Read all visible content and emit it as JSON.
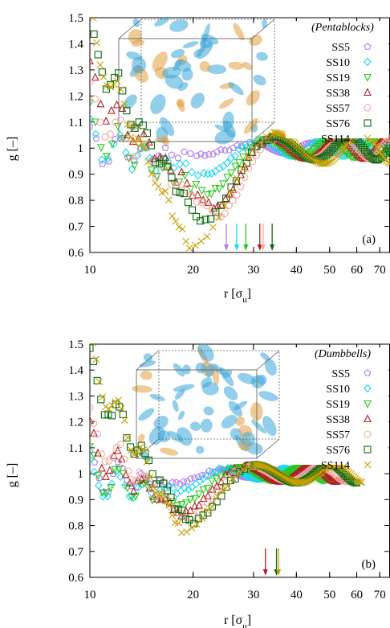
{
  "figure": {
    "xlabel": "r [σ",
    "xlabel_sub": "u",
    "xlabel_close": "]",
    "ylabel": "g [–]"
  },
  "colors": {
    "SS5": "#b07ef0",
    "SS10": "#19d6f2",
    "SS19": "#27c81e",
    "SS38": "#b0201e",
    "SS57": "#f4a8a0",
    "SS76": "#0f6a10",
    "SS114": "#c8a000",
    "box_blue": "#3aa6d8",
    "box_orange": "#e0a040"
  },
  "chart_data": [
    {
      "type": "scatter",
      "panel_label": "(a)",
      "legend_title": "(Pentablocks)",
      "xscale": "log",
      "xlim": [
        10,
        75
      ],
      "ylim": [
        0.6,
        1.5
      ],
      "xticks": [
        "10",
        "20",
        "30",
        "40",
        "50",
        "60",
        "70"
      ],
      "yticks": [
        "0.6",
        "0.7",
        "0.8",
        "0.9",
        "1",
        "1.1",
        "1.2",
        "1.3",
        "1.4",
        "1.5"
      ],
      "grid": false,
      "legend_placement": "top-right",
      "series": [
        {
          "name": "SS5",
          "marker": "pentagon",
          "min_x": 20.5,
          "min_y": 0.97,
          "first_y": 1.0,
          "wave_start": 30,
          "end_x": 75,
          "amp": 0.02,
          "period": 14,
          "arrow_x": 25
        },
        {
          "name": "SS10",
          "marker": "diamond",
          "min_x": 21.5,
          "min_y": 0.9,
          "first_y": 1.03,
          "wave_start": 31,
          "end_x": 75,
          "amp": 0.03,
          "period": 16,
          "arrow_x": 26.8
        },
        {
          "name": "SS19",
          "marker": "triangle-down",
          "min_x": 22,
          "min_y": 0.83,
          "first_y": 1.09,
          "wave_start": 32,
          "end_x": 75,
          "amp": 0.035,
          "period": 18,
          "arrow_x": 28.5
        },
        {
          "name": "SS38",
          "marker": "triangle-up",
          "min_x": 23,
          "min_y": 0.77,
          "first_y": 1.25,
          "wave_start": 33,
          "end_x": 75,
          "amp": 0.04,
          "period": 20,
          "arrow_x": 31.3
        },
        {
          "name": "SS57",
          "marker": "circle",
          "min_x": 23.5,
          "min_y": 0.74,
          "first_y": 1.17,
          "wave_start": 34,
          "end_x": 75,
          "amp": 0.04,
          "period": 21,
          "arrow_x": 32
        },
        {
          "name": "SS76",
          "marker": "square",
          "min_x": 21,
          "min_y": 0.72,
          "first_y": 1.43,
          "wave_start": 34,
          "end_x": 75,
          "amp": 0.045,
          "period": 23,
          "arrow_x": 34
        },
        {
          "name": "SS114",
          "marker": "x",
          "min_x": 19.5,
          "min_y": 0.62,
          "first_y": 1.47,
          "wave_start": 34,
          "end_x": 75,
          "amp": 0.06,
          "period": 28,
          "arrow_x": null
        }
      ]
    },
    {
      "type": "scatter",
      "panel_label": "(b)",
      "legend_title": "(Dumbbells)",
      "xscale": "log",
      "xlim": [
        10,
        75
      ],
      "ylim": [
        0.6,
        1.5
      ],
      "xticks": [
        "10",
        "20",
        "30",
        "40",
        "50",
        "60",
        "70"
      ],
      "yticks": [
        "0.6",
        "0.7",
        "0.8",
        "0.9",
        "1",
        "1.1",
        "1.2",
        "1.3",
        "1.4",
        "1.5"
      ],
      "grid": false,
      "legend_placement": "top-right",
      "series": [
        {
          "name": "SS5",
          "marker": "pentagon",
          "min_x": 17,
          "min_y": 0.96,
          "first_y": 1.0,
          "wave_start": 24,
          "end_x": 40,
          "amp": 0.015,
          "period": 10,
          "arrow_x": null
        },
        {
          "name": "SS10",
          "marker": "diamond",
          "min_x": 17.5,
          "min_y": 0.93,
          "first_y": 0.97,
          "wave_start": 25,
          "end_x": 45,
          "amp": 0.02,
          "period": 12,
          "arrow_x": null
        },
        {
          "name": "SS19",
          "marker": "triangle-down",
          "min_x": 18,
          "min_y": 0.88,
          "first_y": 1.02,
          "wave_start": 27,
          "end_x": 50,
          "amp": 0.025,
          "period": 14,
          "arrow_x": null
        },
        {
          "name": "SS38",
          "marker": "triangle-up",
          "min_x": 18.5,
          "min_y": 0.85,
          "first_y": 1.12,
          "wave_start": 28,
          "end_x": 55,
          "amp": 0.03,
          "period": 16,
          "arrow_x": 32.5
        },
        {
          "name": "SS57",
          "marker": "circle",
          "min_x": 19,
          "min_y": 0.83,
          "first_y": 1.17,
          "wave_start": 29,
          "end_x": 57,
          "amp": 0.03,
          "period": 18,
          "arrow_x": null
        },
        {
          "name": "SS76",
          "marker": "square",
          "min_x": 19.5,
          "min_y": 0.81,
          "first_y": 1.4,
          "wave_start": 30,
          "end_x": 60,
          "amp": 0.035,
          "period": 20,
          "arrow_x": 35
        },
        {
          "name": "SS114",
          "marker": "x",
          "min_x": 18.5,
          "min_y": 0.78,
          "first_y": 1.48,
          "wave_start": 30,
          "end_x": 62,
          "amp": 0.035,
          "period": 22,
          "arrow_x": 35.5
        }
      ]
    }
  ]
}
